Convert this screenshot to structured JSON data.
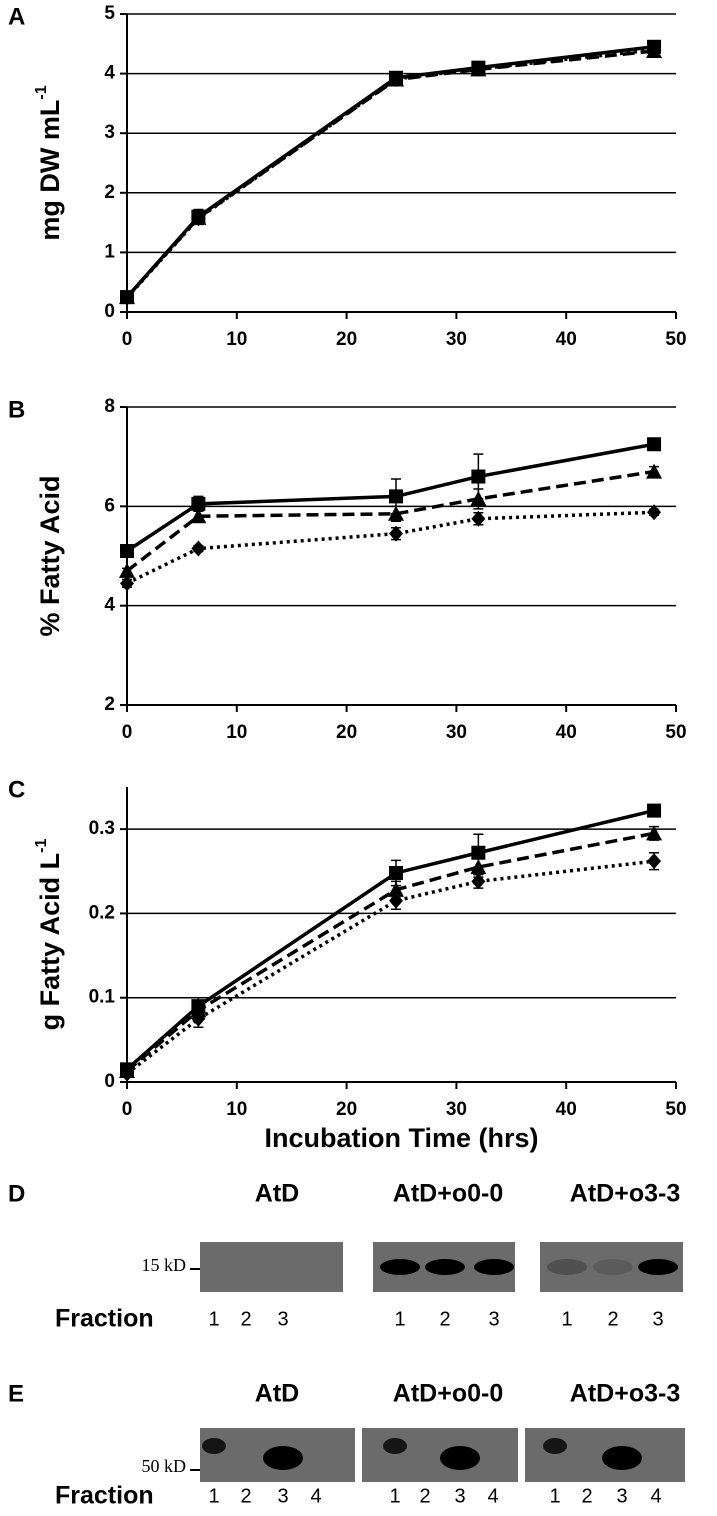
{
  "chart_data": [
    {
      "type": "line",
      "panel": "A",
      "y_label": "mg DW mL",
      "y_label_sup": "-1",
      "x": [
        0,
        6.5,
        24.5,
        32,
        48
      ],
      "xlim": [
        0,
        50
      ],
      "xticks": [
        0,
        10,
        20,
        30,
        40,
        50
      ],
      "ylim": [
        0,
        5
      ],
      "yticks": [
        0,
        1,
        2,
        3,
        4,
        5
      ],
      "grid": true,
      "series": [
        {
          "color": "#000000",
          "dash": "solid",
          "marker": "square",
          "values": [
            0.25,
            1.6,
            3.93,
            4.1,
            4.45
          ],
          "errors": [
            0.05,
            0.12,
            0.06,
            0.08,
            0.1
          ]
        },
        {
          "color": "#000000",
          "dash": "dashed",
          "marker": "triangle",
          "values": [
            0.25,
            1.58,
            3.9,
            4.07,
            4.38
          ],
          "errors": [
            0.05,
            0.1,
            0.06,
            0.07,
            0.1
          ]
        },
        {
          "color": "#000000",
          "dash": "dotted",
          "marker": "diamond",
          "values": [
            0.24,
            1.57,
            3.91,
            4.08,
            4.4
          ],
          "errors": [
            0.05,
            0.1,
            0.06,
            0.07,
            0.08
          ]
        }
      ]
    },
    {
      "type": "line",
      "panel": "B",
      "y_label": "% Fatty Acid",
      "x": [
        0,
        6.5,
        24.5,
        32,
        48
      ],
      "xlim": [
        0,
        50
      ],
      "xticks": [
        0,
        10,
        20,
        30,
        40,
        50
      ],
      "ylim": [
        2,
        8
      ],
      "yticks": [
        2,
        4,
        6,
        8
      ],
      "grid": true,
      "series": [
        {
          "color": "#000000",
          "dash": "solid",
          "marker": "square",
          "values": [
            5.1,
            6.05,
            6.2,
            6.6,
            7.25
          ],
          "errors": [
            0.05,
            0.15,
            0.35,
            0.45,
            0.12
          ]
        },
        {
          "color": "#000000",
          "dash": "dashed",
          "marker": "triangle",
          "values": [
            4.7,
            5.8,
            5.85,
            6.15,
            6.7
          ],
          "errors": [
            0.05,
            0.1,
            0.15,
            0.2,
            0.1
          ]
        },
        {
          "color": "#000000",
          "dash": "dotted",
          "marker": "diamond",
          "values": [
            4.45,
            5.15,
            5.45,
            5.75,
            5.88
          ],
          "errors": [
            0.08,
            0.06,
            0.12,
            0.12,
            0.06
          ]
        }
      ]
    },
    {
      "type": "line",
      "panel": "C",
      "y_label": "g Fatty Acid L",
      "y_label_sup": "-1",
      "x_label": "Incubation Time (hrs)",
      "x": [
        0,
        6.5,
        24.5,
        32,
        48
      ],
      "xlim": [
        0,
        50
      ],
      "xticks": [
        0,
        10,
        20,
        30,
        40,
        50
      ],
      "ylim": [
        0,
        0.35
      ],
      "yticks": [
        0,
        0.1,
        0.2,
        0.3
      ],
      "grid": true,
      "series": [
        {
          "color": "#000000",
          "dash": "solid",
          "marker": "square",
          "values": [
            0.015,
            0.09,
            0.248,
            0.272,
            0.322
          ],
          "errors": [
            0.003,
            0.01,
            0.015,
            0.022,
            0.004
          ]
        },
        {
          "color": "#000000",
          "dash": "dashed",
          "marker": "triangle",
          "values": [
            0.013,
            0.085,
            0.228,
            0.255,
            0.295
          ],
          "errors": [
            0.003,
            0.008,
            0.01,
            0.012,
            0.008
          ]
        },
        {
          "color": "#000000",
          "dash": "dotted",
          "marker": "diamond",
          "values": [
            0.01,
            0.075,
            0.215,
            0.238,
            0.262
          ],
          "errors": [
            0.003,
            0.01,
            0.01,
            0.008,
            0.01
          ]
        }
      ]
    }
  ],
  "blots": [
    {
      "panel": "D",
      "marker": "15 kD",
      "row_label": "Fraction",
      "groups": [
        {
          "title": "AtD",
          "fractions": [
            "1",
            "2",
            "3"
          ]
        },
        {
          "title": "AtD+o0-0",
          "fractions": [
            "1",
            "2",
            "3"
          ]
        },
        {
          "title": "AtD+o3-3",
          "fractions": [
            "1",
            "2",
            "3"
          ]
        }
      ]
    },
    {
      "panel": "E",
      "marker": "50 kD",
      "row_label": "Fraction",
      "groups": [
        {
          "title": "AtD",
          "fractions": [
            "1",
            "2",
            "3",
            "4"
          ]
        },
        {
          "title": "AtD+o0-0",
          "fractions": [
            "1",
            "2",
            "3",
            "4"
          ]
        },
        {
          "title": "AtD+o3-3",
          "fractions": [
            "1",
            "2",
            "3",
            "4"
          ]
        }
      ]
    }
  ]
}
